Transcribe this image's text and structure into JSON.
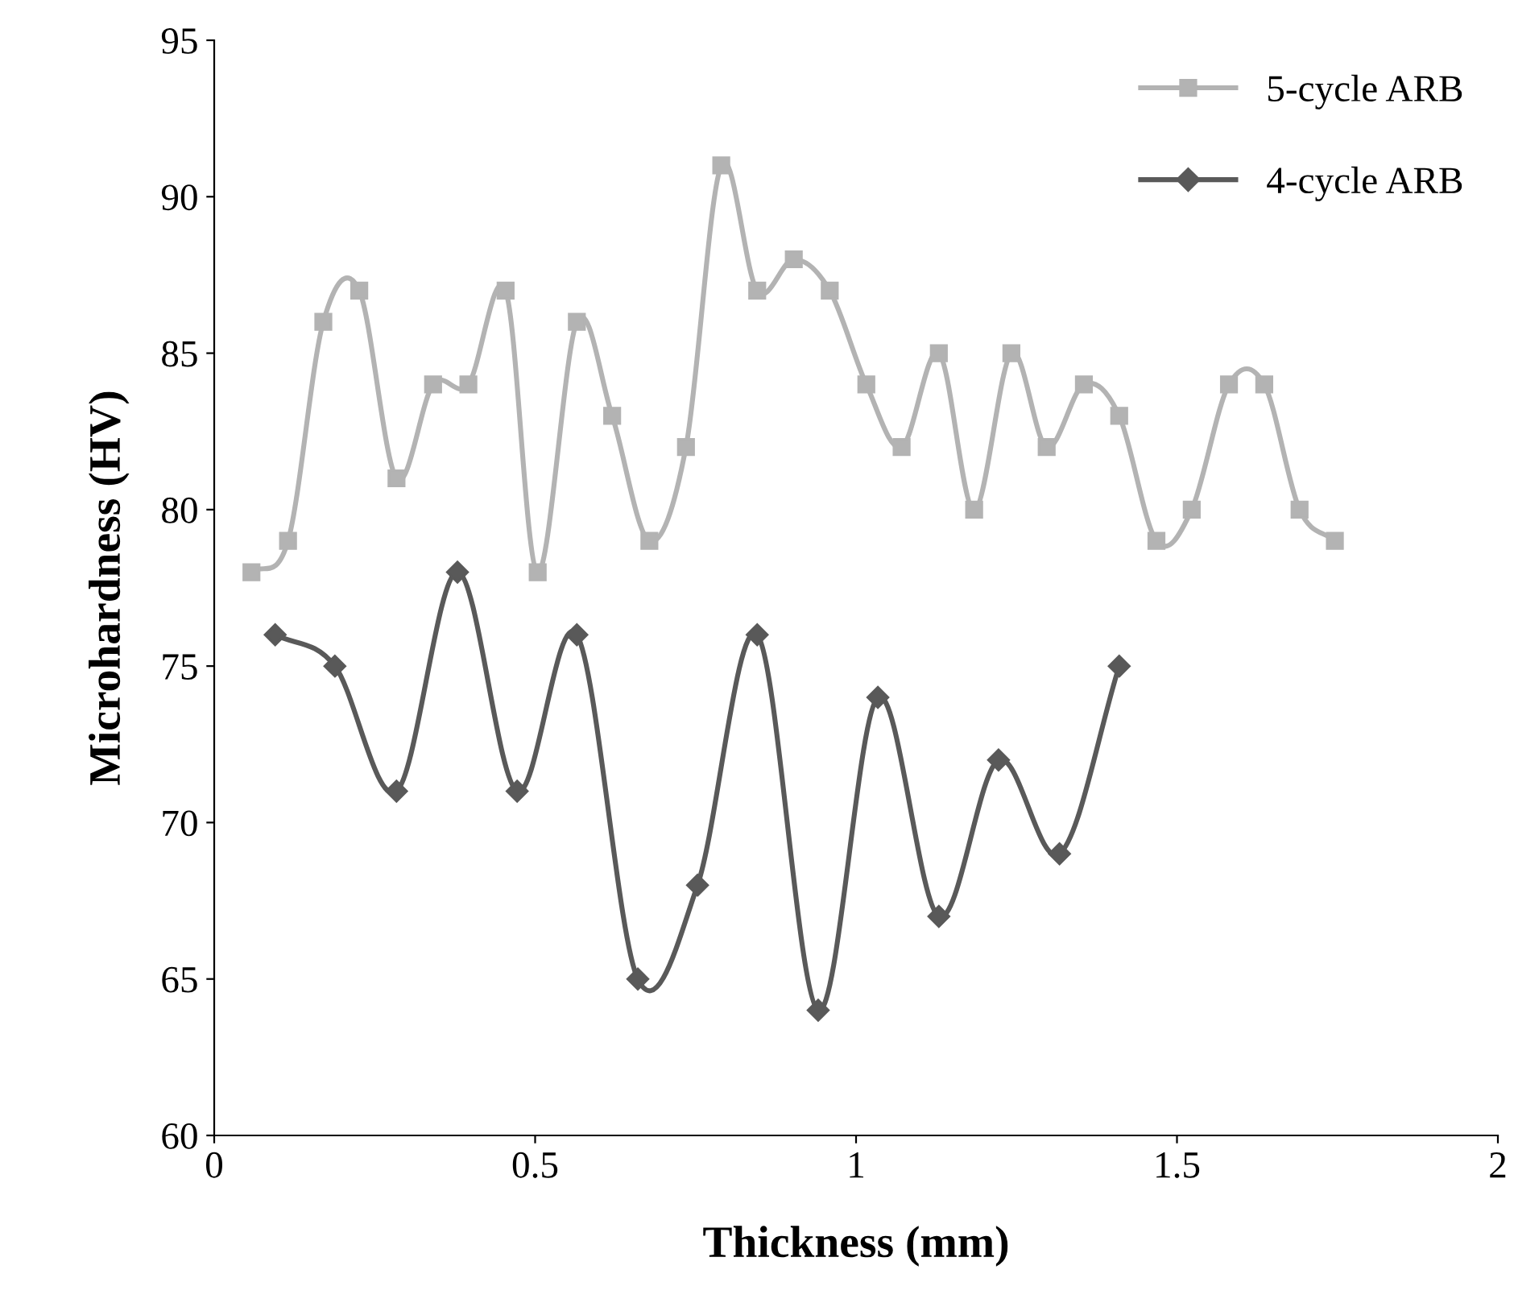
{
  "chart_data": {
    "type": "line",
    "xlabel": "Thickness (mm)",
    "ylabel": "Microhardness (HV)",
    "xlim": [
      0,
      2
    ],
    "xticks": [
      0,
      0.5,
      1,
      1.5,
      2
    ],
    "ylim": [
      60,
      95
    ],
    "yticks": [
      60,
      65,
      70,
      75,
      80,
      85,
      90,
      95
    ],
    "legend": "top right",
    "grid": false,
    "line_style": "solid",
    "series": [
      {
        "name": "5-cycle ARB",
        "color": "#b3b3b3",
        "marker": "square",
        "x": [
          0.058,
          0.115,
          0.17,
          0.226,
          0.284,
          0.341,
          0.396,
          0.454,
          0.504,
          0.565,
          0.62,
          0.678,
          0.735,
          0.79,
          0.846,
          0.903,
          0.959,
          1.016,
          1.071,
          1.129,
          1.184,
          1.242,
          1.297,
          1.355,
          1.41,
          1.468,
          1.523,
          1.581,
          1.636,
          1.691,
          1.746
        ],
        "values": [
          78,
          79,
          86,
          87,
          81,
          84,
          84,
          87,
          78,
          86,
          83,
          79,
          82,
          91,
          87,
          88,
          87,
          84,
          82,
          85,
          80,
          85,
          82,
          84,
          83,
          79,
          80,
          84,
          84,
          80,
          79
        ]
      },
      {
        "name": "4-cycle ARB",
        "color": "#595959",
        "marker": "diamond",
        "x": [
          0.095,
          0.188,
          0.284,
          0.379,
          0.472,
          0.565,
          0.66,
          0.753,
          0.846,
          0.941,
          1.034,
          1.129,
          1.222,
          1.317,
          1.41
        ],
        "values": [
          76,
          75,
          71,
          78,
          71,
          76,
          65,
          68,
          76,
          64,
          74,
          67,
          72,
          69,
          75
        ]
      }
    ]
  }
}
